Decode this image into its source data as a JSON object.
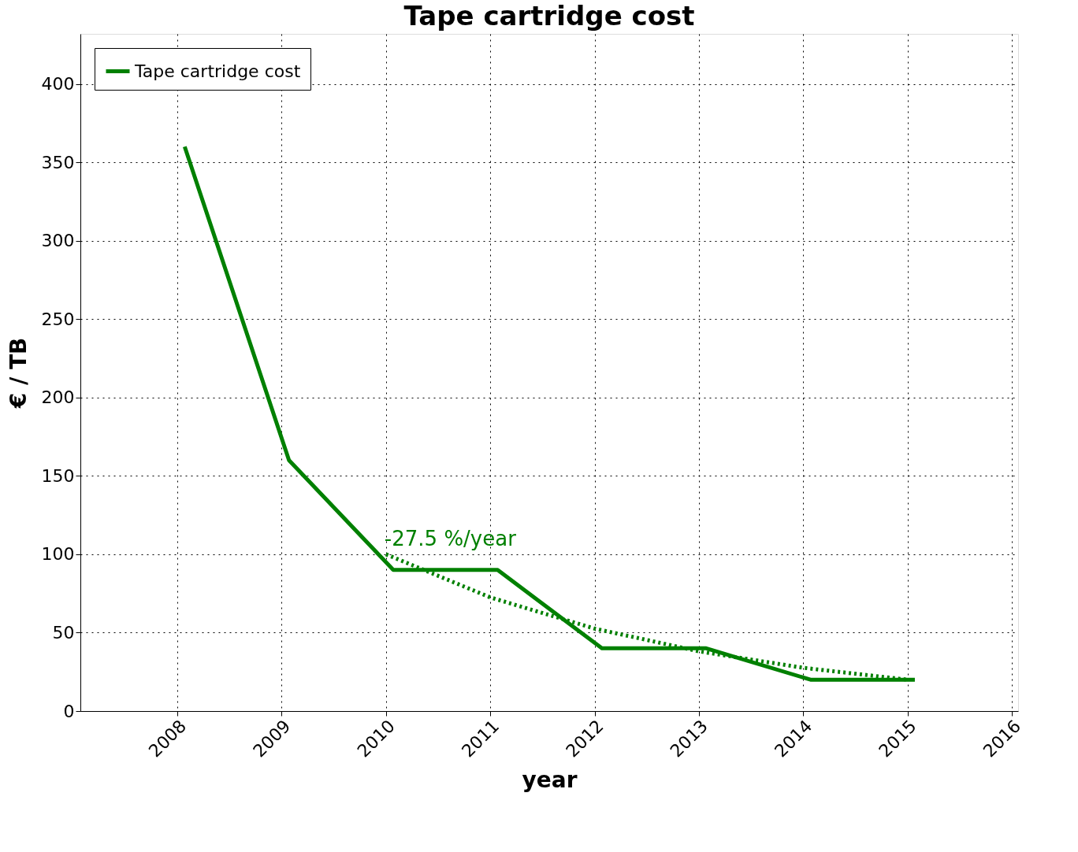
{
  "chart_data": {
    "type": "line",
    "title": "Tape cartridge cost",
    "xlabel": "year",
    "ylabel": "€ / TB",
    "xlim": [
      2007.07,
      2016.06
    ],
    "xticks": [
      2008,
      2009,
      2010,
      2011,
      2012,
      2013,
      2014,
      2015,
      2016
    ],
    "ylim": [
      0,
      432
    ],
    "yticks": [
      0,
      50,
      100,
      150,
      200,
      250,
      300,
      350,
      400
    ],
    "grid": true,
    "legend": "top left",
    "marker": "none",
    "series": [
      {
        "name": "Tape cartridge cost",
        "color": "#008000",
        "line_style": "solid",
        "x": [
          2008.07,
          2009.07,
          2010.07,
          2011.07,
          2012.07,
          2013.07,
          2014.07,
          2015.07
        ],
        "values": [
          360,
          160,
          90,
          90,
          40,
          40,
          20,
          20
        ]
      },
      {
        "type": "line",
        "color": "#008000",
        "line_style": "dotted",
        "x": [
          2010,
          2011,
          2012,
          2013,
          2014,
          2015
        ],
        "values": [
          100,
          72.5,
          52.6,
          38.1,
          27.6,
          20.0
        ]
      }
    ],
    "annotations": [
      {
        "text": "-27.5 %/year",
        "x": 2010,
        "y": 100
      }
    ]
  }
}
